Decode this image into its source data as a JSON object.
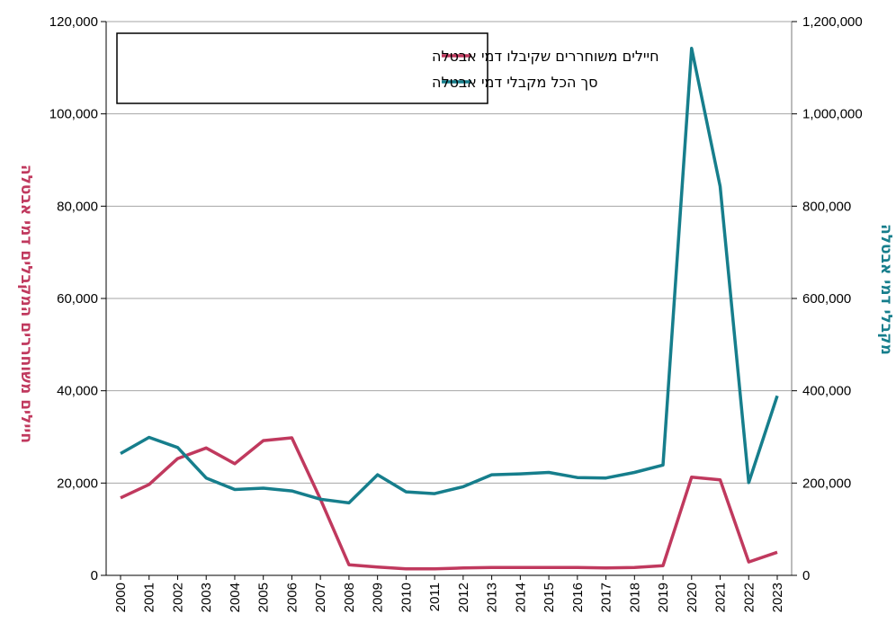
{
  "chart_data": {
    "type": "line",
    "categories": [
      "2000",
      "2001",
      "2002",
      "2003",
      "2004",
      "2005",
      "2006",
      "2007",
      "2008",
      "2009",
      "2010",
      "2011",
      "2012",
      "2013",
      "2014",
      "2015",
      "2016",
      "2017",
      "2018",
      "2019",
      "2020",
      "2021",
      "2022",
      "2023"
    ],
    "series": [
      {
        "name": "חיילים משוחררים שקיבלו דמי אבטלה",
        "axis": "left",
        "color": "#c0395e",
        "values": [
          16800,
          19700,
          25300,
          27600,
          24200,
          29200,
          29800,
          16500,
          2300,
          1800,
          1400,
          1400,
          1600,
          1700,
          1700,
          1700,
          1700,
          1600,
          1700,
          2100,
          21300,
          20700,
          2900,
          5000
        ]
      },
      {
        "name": "סך הכל מקבלי דמי אבטלה",
        "axis": "right",
        "color": "#167e8c",
        "values": [
          264000,
          299000,
          277000,
          211000,
          186000,
          189000,
          183000,
          165000,
          157000,
          218000,
          181000,
          177000,
          192000,
          218000,
          220000,
          223000,
          212000,
          211000,
          223000,
          239000,
          1142000,
          843000,
          201000,
          389000
        ]
      }
    ],
    "y_left": {
      "label": "חיילים משוחררים המקבלים דמי אבטלה",
      "range": [
        0,
        120000
      ],
      "ticks": [
        "0",
        "20,000",
        "40,000",
        "60,000",
        "80,000",
        "100,000",
        "120,000"
      ],
      "color": "#c0395e"
    },
    "y_right": {
      "label": "מקבלי דמי אבטלה",
      "range": [
        0,
        1200000
      ],
      "ticks": [
        "0",
        "200,000",
        "400,000",
        "600,000",
        "800,000",
        "1,000,000",
        "1,200,000"
      ],
      "color": "#167e8c"
    },
    "grid": true,
    "legend_position": "top-left"
  }
}
